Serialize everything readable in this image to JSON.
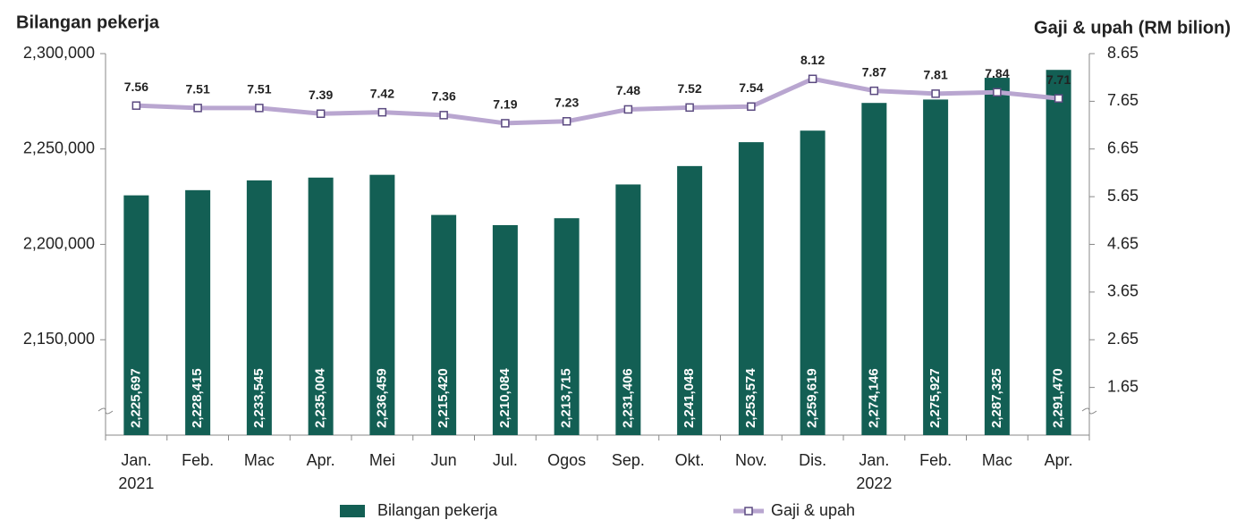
{
  "chart_data": {
    "type": "bar_line",
    "y_title": "Bilangan pekerja",
    "y2_title": "Gaji & upah (RM bilion)",
    "categories": [
      "Jan.\n2021",
      "Feb.",
      "Mac",
      "Apr.",
      "Mei",
      "Jun",
      "Jul.",
      "Ogos",
      "Sep.",
      "Okt.",
      "Nov.",
      "Dis.",
      "Jan.\n2022",
      "Feb.",
      "Mac",
      "Apr."
    ],
    "series": [
      {
        "name": "Bilangan pekerja",
        "type": "bar",
        "color": "#135f54",
        "values": [
          2225697,
          2228415,
          2233545,
          2235004,
          2236459,
          2215420,
          2210084,
          2213715,
          2231406,
          2241048,
          2253574,
          2259619,
          2274146,
          2275927,
          2287325,
          2291470
        ],
        "value_labels": [
          "2,225,697",
          "2,228,415",
          "2,233,545",
          "2,235,004",
          "2,236,459",
          "2,215,420",
          "2,210,084",
          "2,213,715",
          "2,231,406",
          "2,241,048",
          "2,253,574",
          "2,259,619",
          "2,274,146",
          "2,275,927",
          "2,287,325",
          "2,291,470"
        ]
      },
      {
        "name": "Gaji & upah",
        "type": "line",
        "axis": "y2",
        "color": "#b9a6d0",
        "marker_color": "#5b4a80",
        "values": [
          7.56,
          7.51,
          7.51,
          7.39,
          7.42,
          7.36,
          7.19,
          7.23,
          7.48,
          7.52,
          7.54,
          8.12,
          7.87,
          7.81,
          7.84,
          7.71
        ]
      }
    ],
    "ylim": [
      2100000,
      2300000
    ],
    "yticks": [
      {
        "value": 2150000,
        "label": "2,150,000"
      },
      {
        "value": 2200000,
        "label": "2,200,000"
      },
      {
        "value": 2250000,
        "label": "2,250,000"
      },
      {
        "value": 2300000,
        "label": "2,300,000"
      }
    ],
    "y2lim": [
      0.65,
      8.65
    ],
    "y2ticks": [
      1.65,
      2.65,
      3.65,
      4.65,
      5.65,
      6.65,
      7.65,
      8.65
    ],
    "legend": "bottom"
  }
}
